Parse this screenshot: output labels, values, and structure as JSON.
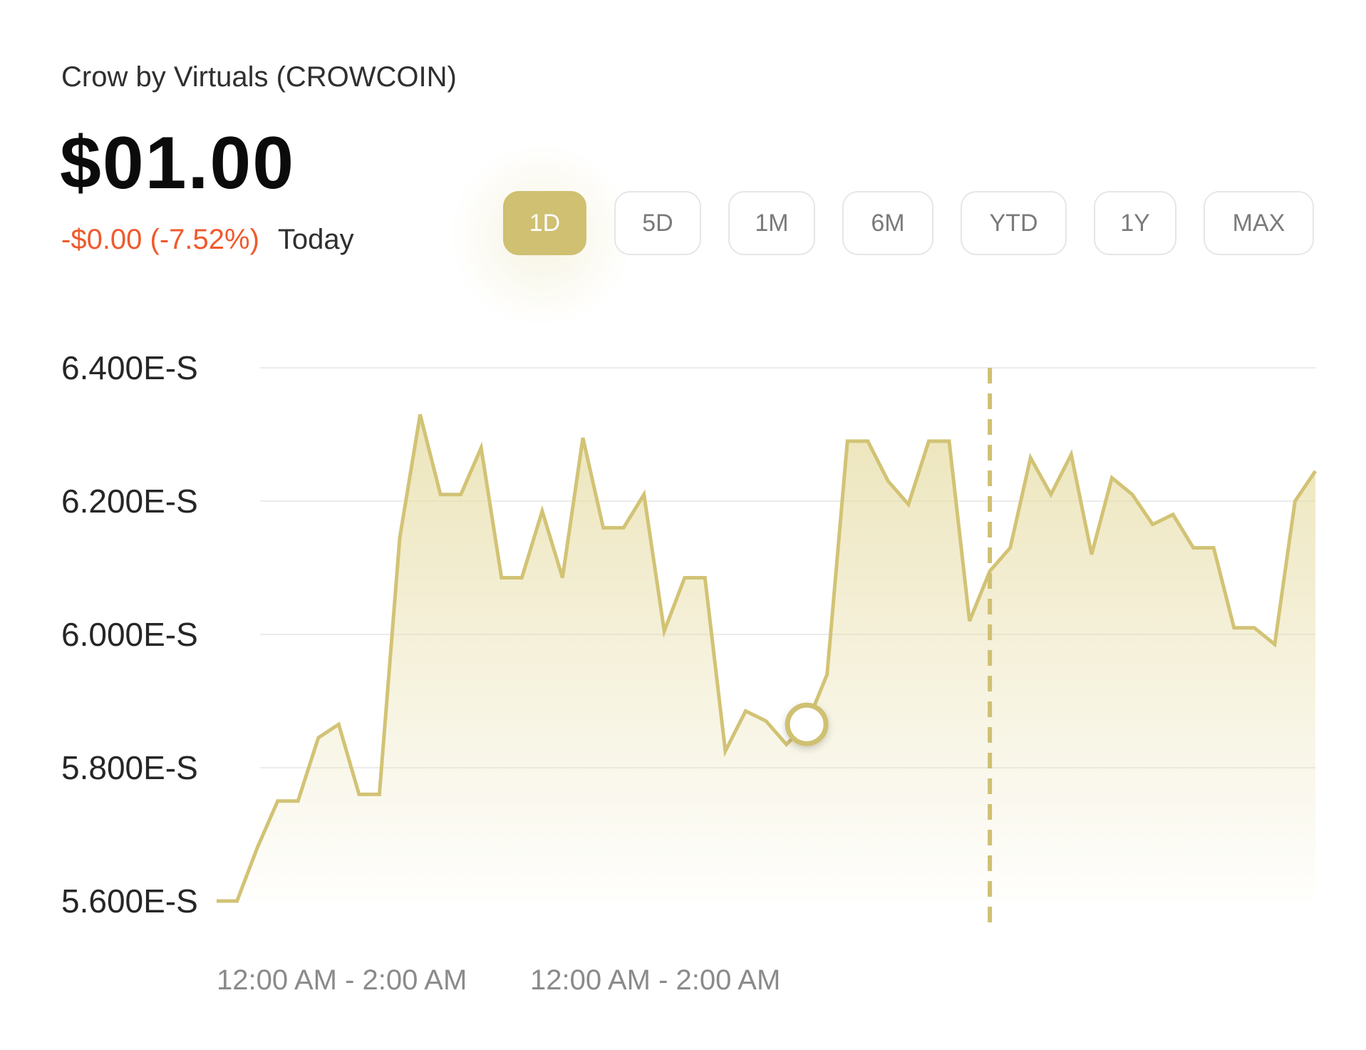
{
  "header": {
    "title": "Crow by Virtuals (CROWCOIN)",
    "price": "$01.00",
    "change": "-$0.00 (-7.52%)",
    "period": "Today"
  },
  "ranges": [
    "1D",
    "5D",
    "1M",
    "6M",
    "YTD",
    "1Y",
    "MAX"
  ],
  "active_range": "1D",
  "colors": {
    "accent": "#cfc072",
    "negative": "#ef5a2c",
    "fill": "#ece5bd"
  },
  "chart_data": {
    "type": "area",
    "ytick_labels": [
      "6.400E-S",
      "6.200E-S",
      "6.000E-S",
      "5.800E-S",
      "5.600E-S"
    ],
    "ytick_values": [
      6.4,
      6.2,
      6.0,
      5.8,
      5.6
    ],
    "ylim": [
      5.6,
      6.4
    ],
    "xtick_labels": [
      "12:00 AM - 2:00 AM",
      "12:00 AM - 2:00 AM"
    ],
    "grid": true,
    "values": [
      5.6,
      5.6,
      5.68,
      5.75,
      5.75,
      5.845,
      5.865,
      5.76,
      5.76,
      6.145,
      6.33,
      6.21,
      6.21,
      6.28,
      6.085,
      6.085,
      6.185,
      6.085,
      6.295,
      6.16,
      6.16,
      6.21,
      6.005,
      6.085,
      6.085,
      5.825,
      5.885,
      5.87,
      5.835,
      5.865,
      5.94,
      6.29,
      6.29,
      6.23,
      6.195,
      6.29,
      6.29,
      6.02,
      6.095,
      6.13,
      6.265,
      6.21,
      6.27,
      6.12,
      6.235,
      6.21,
      6.165,
      6.18,
      6.13,
      6.13,
      6.01,
      6.01,
      5.985,
      6.2,
      6.245
    ],
    "marker_index": 29,
    "reference_index": 38
  }
}
